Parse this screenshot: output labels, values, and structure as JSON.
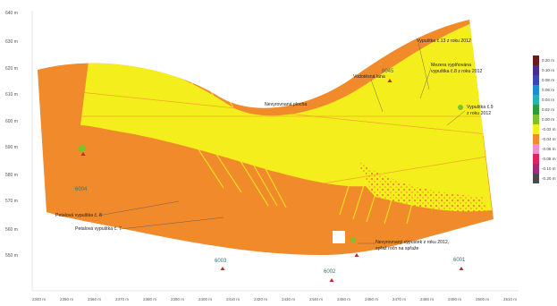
{
  "y_axis_labels": [
    "640 m",
    "630 m",
    "620 m",
    "610 m",
    "600 m",
    "590 m",
    "580 m",
    "570 m",
    "560 m",
    "550 m"
  ],
  "x_axis_labels": [
    "2340 m",
    "2350 m",
    "2360 m",
    "2370 m",
    "2380 m",
    "2390 m",
    "2400 m",
    "2410 m",
    "2420 m",
    "2430 m",
    "2440 m",
    "2450 m",
    "2460 m",
    "2470 m",
    "2480 m",
    "2490 m",
    "2500 m",
    "2510 m"
  ],
  "point_labels": {
    "p6004": "6004",
    "p6003": "6003",
    "p6002": "6002",
    "p6001": "6001",
    "p6045": "6045"
  },
  "annotations": {
    "vypustka_13": "Vypuštka č.13 z roku 2012",
    "vodotesna": "Vodotěsná lana",
    "mezera": "Mezera vyplňována",
    "mezera2": "vypuštka č.8 z roku 2012",
    "vypustka_9a": "Vypuštka č.9",
    "vypustka_9b": "z roku 2012",
    "nevyrovnana": "Nevyrovnaná plocha",
    "petalova_8": "Petalová vypuštka č. 8",
    "petalova_7": "Petalová vypuštka č. 7",
    "nevyrovnany_a": "Nevyrovnaný výpustek z roku 2012,",
    "nevyrovnany_b": "spřaž ročn na spřaže"
  },
  "legend": {
    "labels": [
      "0.20 m",
      "0.10 m",
      "0.08 m",
      "0.06 m",
      "0.04 m",
      "0.02 m",
      "0.00 m",
      "-0.02 m",
      "-0.04 m",
      "-0.06 m",
      "-0.08 m",
      "-0.10 m",
      "-0.20 m"
    ],
    "colors": [
      "#6a1b1b",
      "#4a2d8a",
      "#3a47b5",
      "#1a8fd0",
      "#22b3b3",
      "#2e9a3c",
      "#7cc22a",
      "#f4ee1c",
      "#f08a2a",
      "#ef8fd0",
      "#e0235a",
      "#a12a7c",
      "#4a4a4a"
    ]
  }
}
